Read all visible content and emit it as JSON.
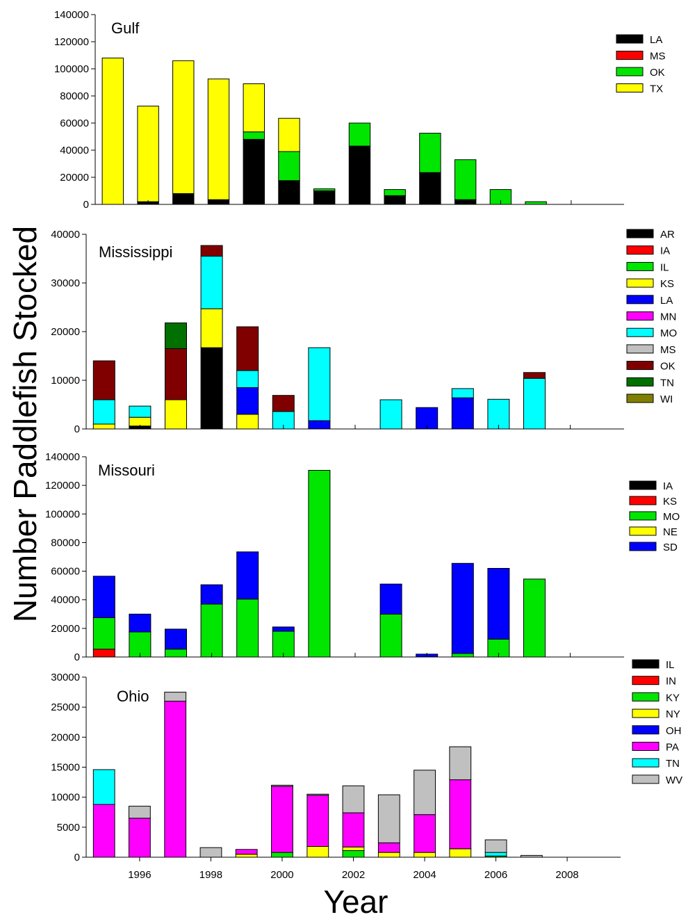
{
  "figure": {
    "ylabel": "Number Paddlefish Stocked",
    "xlabel": "Year"
  },
  "chart_data": [
    {
      "type": "bar",
      "stacked": true,
      "title": "Gulf",
      "x": [
        1995,
        1996,
        1997,
        1998,
        1999,
        2000,
        2001,
        2002,
        2003,
        2004,
        2005,
        2006,
        2007
      ],
      "xlim": [
        1994.5,
        2009.5
      ],
      "ylim": [
        0,
        140000
      ],
      "yticks": [
        0,
        20000,
        40000,
        60000,
        80000,
        100000,
        120000,
        140000
      ],
      "xticks": [],
      "legend_position": "right",
      "series": [
        {
          "name": "LA",
          "color": "#000000",
          "values": [
            0,
            2000,
            8000,
            3500,
            48000,
            17500,
            10000,
            43000,
            6500,
            23500,
            3500,
            0,
            0
          ]
        },
        {
          "name": "MS",
          "color": "#ff0000",
          "values": [
            0,
            0,
            0,
            0,
            0,
            0,
            0,
            0,
            0,
            0,
            0,
            0,
            0
          ]
        },
        {
          "name": "OK",
          "color": "#00e600",
          "values": [
            0,
            0,
            0,
            0,
            5500,
            21500,
            1500,
            17000,
            4500,
            29000,
            29500,
            11000,
            2000
          ]
        },
        {
          "name": "TX",
          "color": "#ffff00",
          "values": [
            108000,
            70500,
            98000,
            89000,
            35500,
            24500,
            0,
            0,
            0,
            0,
            0,
            0,
            0
          ]
        }
      ]
    },
    {
      "type": "bar",
      "stacked": true,
      "title": "Mississippi",
      "x": [
        1995,
        1996,
        1997,
        1998,
        1999,
        2000,
        2001,
        2002,
        2003,
        2004,
        2005,
        2006,
        2007
      ],
      "xlim": [
        1994.5,
        2009.5
      ],
      "ylim": [
        0,
        40000
      ],
      "yticks": [
        0,
        10000,
        20000,
        30000,
        40000
      ],
      "xticks": [],
      "legend_position": "right",
      "series": [
        {
          "name": "AR",
          "color": "#000000",
          "values": [
            0,
            600,
            0,
            16700,
            0,
            0,
            0,
            0,
            0,
            0,
            0,
            0,
            0
          ]
        },
        {
          "name": "IA",
          "color": "#ff0000",
          "values": [
            0,
            0,
            0,
            0,
            0,
            0,
            0,
            0,
            0,
            0,
            0,
            0,
            0
          ]
        },
        {
          "name": "IL",
          "color": "#00e600",
          "values": [
            0,
            0,
            0,
            0,
            0,
            0,
            0,
            0,
            0,
            0,
            0,
            0,
            0
          ]
        },
        {
          "name": "KS",
          "color": "#ffff00",
          "values": [
            1000,
            1800,
            6000,
            8000,
            3000,
            0,
            0,
            0,
            0,
            0,
            0,
            0,
            0
          ]
        },
        {
          "name": "LA",
          "color": "#0000ff",
          "values": [
            0,
            0,
            0,
            0,
            5500,
            0,
            1700,
            0,
            0,
            4400,
            6400,
            0,
            0
          ]
        },
        {
          "name": "MN",
          "color": "#ff00ff",
          "values": [
            0,
            0,
            0,
            0,
            0,
            0,
            0,
            0,
            0,
            0,
            0,
            0,
            0
          ]
        },
        {
          "name": "MO",
          "color": "#00ffff",
          "values": [
            5000,
            2300,
            0,
            10800,
            3500,
            3600,
            15000,
            0,
            6000,
            0,
            1900,
            6100,
            10400
          ]
        },
        {
          "name": "MS",
          "color": "#c0c0c0",
          "values": [
            0,
            0,
            0,
            0,
            0,
            0,
            0,
            0,
            0,
            0,
            0,
            0,
            0
          ]
        },
        {
          "name": "OK",
          "color": "#800000",
          "values": [
            8000,
            0,
            10500,
            2200,
            9000,
            3300,
            0,
            0,
            0,
            0,
            0,
            0,
            1200
          ]
        },
        {
          "name": "TN",
          "color": "#007000",
          "values": [
            0,
            0,
            5300,
            0,
            0,
            0,
            0,
            0,
            0,
            0,
            0,
            0,
            0
          ]
        },
        {
          "name": "WI",
          "color": "#808000",
          "values": [
            0,
            0,
            0,
            0,
            0,
            0,
            0,
            0,
            0,
            0,
            0,
            0,
            0
          ]
        }
      ]
    },
    {
      "type": "bar",
      "stacked": true,
      "title": "Missouri",
      "x": [
        1995,
        1996,
        1997,
        1998,
        1999,
        2000,
        2001,
        2002,
        2003,
        2004,
        2005,
        2006,
        2007
      ],
      "xlim": [
        1994.5,
        2009.5
      ],
      "ylim": [
        0,
        140000
      ],
      "yticks": [
        0,
        20000,
        40000,
        60000,
        80000,
        100000,
        120000,
        140000
      ],
      "xticks": [],
      "legend_position": "right",
      "series": [
        {
          "name": "IA",
          "color": "#000000",
          "values": [
            0,
            0,
            0,
            0,
            0,
            0,
            0,
            0,
            0,
            0,
            0,
            0,
            0
          ]
        },
        {
          "name": "KS",
          "color": "#ff0000",
          "values": [
            5500,
            0,
            0,
            0,
            0,
            0,
            0,
            0,
            0,
            0,
            0,
            0,
            0
          ]
        },
        {
          "name": "MO",
          "color": "#00e600",
          "values": [
            22000,
            17500,
            5500,
            37000,
            40500,
            18000,
            130500,
            0,
            30000,
            0,
            2500,
            12500,
            54500
          ]
        },
        {
          "name": "NE",
          "color": "#ffff00",
          "values": [
            0,
            0,
            0,
            0,
            0,
            0,
            0,
            0,
            0,
            0,
            0,
            0,
            0
          ]
        },
        {
          "name": "SD",
          "color": "#0000ff",
          "values": [
            29000,
            12500,
            14000,
            13500,
            33000,
            3000,
            0,
            0,
            21000,
            2000,
            63000,
            49500,
            0
          ]
        }
      ]
    },
    {
      "type": "bar",
      "stacked": true,
      "title": "Ohio",
      "x": [
        1995,
        1996,
        1997,
        1998,
        1999,
        2000,
        2001,
        2002,
        2003,
        2004,
        2005,
        2006,
        2007
      ],
      "xlim": [
        1994.5,
        2009.5
      ],
      "ylim": [
        0,
        30000
      ],
      "yticks": [
        0,
        5000,
        10000,
        15000,
        20000,
        25000,
        30000
      ],
      "xticks": [
        1996,
        1998,
        2000,
        2002,
        2004,
        2006,
        2008
      ],
      "legend_position": "right",
      "series": [
        {
          "name": "IL",
          "color": "#000000",
          "values": [
            0,
            0,
            0,
            0,
            0,
            0,
            0,
            0,
            0,
            0,
            0,
            0,
            0
          ]
        },
        {
          "name": "IN",
          "color": "#ff0000",
          "values": [
            0,
            0,
            0,
            0,
            0,
            0,
            0,
            0,
            0,
            0,
            0,
            0,
            0
          ]
        },
        {
          "name": "KY",
          "color": "#00e600",
          "values": [
            0,
            0,
            0,
            0,
            0,
            800,
            0,
            1100,
            0,
            0,
            0,
            200,
            0
          ]
        },
        {
          "name": "NY",
          "color": "#ffff00",
          "values": [
            0,
            0,
            0,
            0,
            500,
            0,
            1800,
            600,
            800,
            800,
            1400,
            0,
            0
          ]
        },
        {
          "name": "OH",
          "color": "#0000ff",
          "values": [
            0,
            0,
            0,
            0,
            0,
            0,
            0,
            0,
            0,
            0,
            0,
            0,
            0
          ]
        },
        {
          "name": "PA",
          "color": "#ff00ff",
          "values": [
            8800,
            6500,
            26000,
            0,
            800,
            11000,
            8500,
            5700,
            1600,
            6300,
            11500,
            0,
            0
          ]
        },
        {
          "name": "TN",
          "color": "#00ffff",
          "values": [
            5800,
            0,
            0,
            0,
            0,
            0,
            0,
            0,
            0,
            0,
            0,
            600,
            0
          ]
        },
        {
          "name": "WV",
          "color": "#c0c0c0",
          "values": [
            0,
            2000,
            1500,
            1600,
            0,
            200,
            200,
            4500,
            8000,
            7400,
            5500,
            2100,
            300
          ]
        }
      ]
    }
  ]
}
